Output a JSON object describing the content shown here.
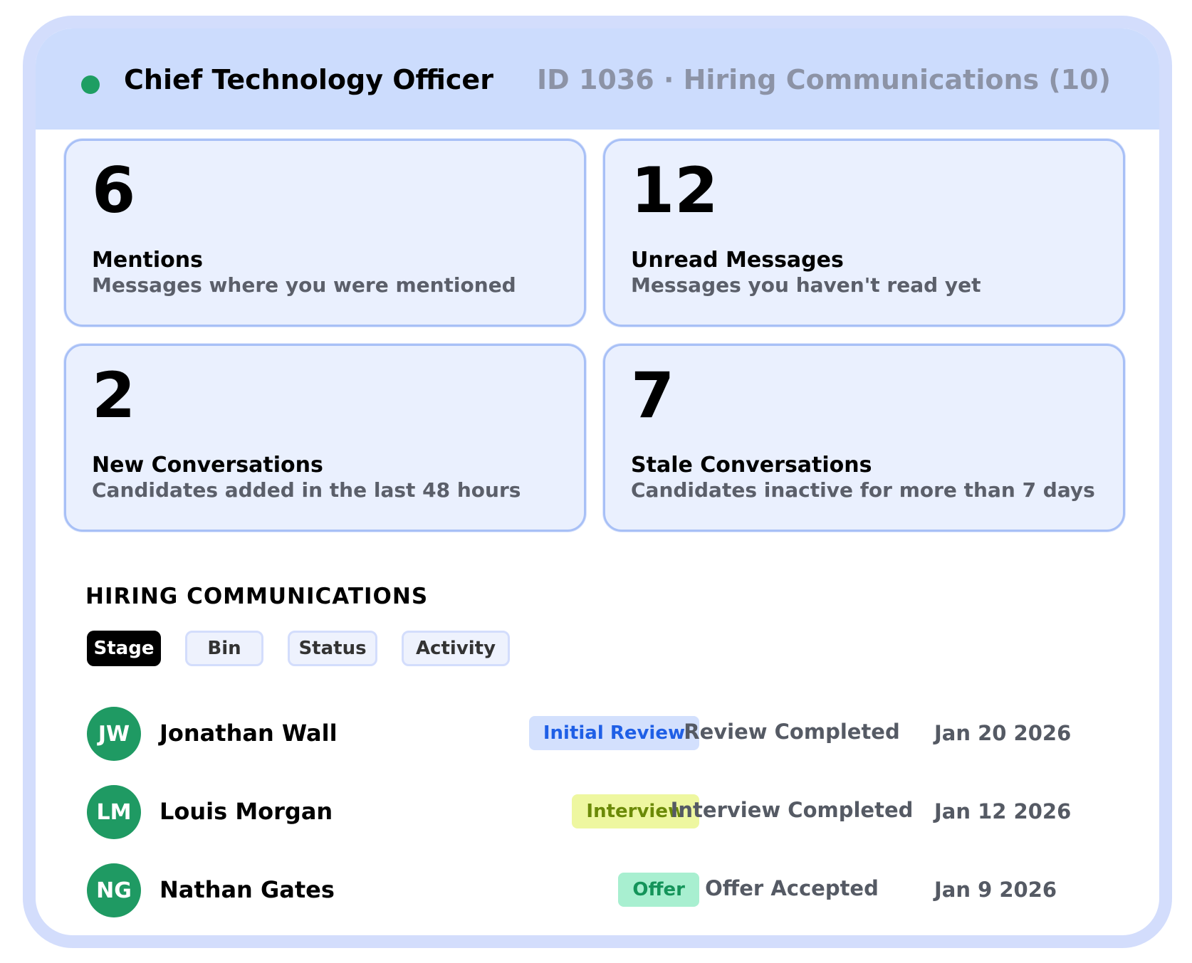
{
  "header": {
    "title": "Chief Technology Officer",
    "meta": "ID 1036 · Hiring Communications (10)",
    "status_dot_color": "#1e9e63"
  },
  "stats": [
    {
      "value": "6",
      "title": "Mentions",
      "description": "Messages where you were mentioned"
    },
    {
      "value": "12",
      "title": "Unread Messages",
      "description": "Messages you haven't read yet"
    },
    {
      "value": "2",
      "title": "New Conversations",
      "description": "Candidates added in the last 48 hours"
    },
    {
      "value": "7",
      "title": "Stale Conversations",
      "description": "Candidates inactive for more than 7 days"
    }
  ],
  "section": {
    "heading": "HIRING COMMUNICATIONS",
    "filters": [
      {
        "label": "Stage",
        "active": true
      },
      {
        "label": "Bin",
        "active": false
      },
      {
        "label": "Status",
        "active": false
      },
      {
        "label": "Activity",
        "active": false
      }
    ]
  },
  "candidates": [
    {
      "initials": "JW",
      "name": "Jonathan Wall",
      "stage": "Initial Review",
      "stage_bg": "#d3e0fd",
      "stage_color": "#1f5fe6",
      "status": "Review Completed",
      "date": "Jan 20 2026"
    },
    {
      "initials": "LM",
      "name": "Louis Morgan",
      "stage": "Interview",
      "stage_bg": "#eef7a0",
      "stage_color": "#6b8a07",
      "status": "Interview Completed",
      "date": "Jan 12 2026"
    },
    {
      "initials": "NG",
      "name": "Nathan Gates",
      "stage": "Offer",
      "stage_bg": "#a8efd0",
      "stage_color": "#14945a",
      "status": "Offer Accepted",
      "date": "Jan 9 2026"
    }
  ],
  "colors": {
    "frame": "#d3ddfc",
    "header_bg": "#ccdcfd",
    "card_bg": "#eaf0fe",
    "card_border": "#a8c0f6",
    "avatar_bg": "#1f9a63"
  }
}
